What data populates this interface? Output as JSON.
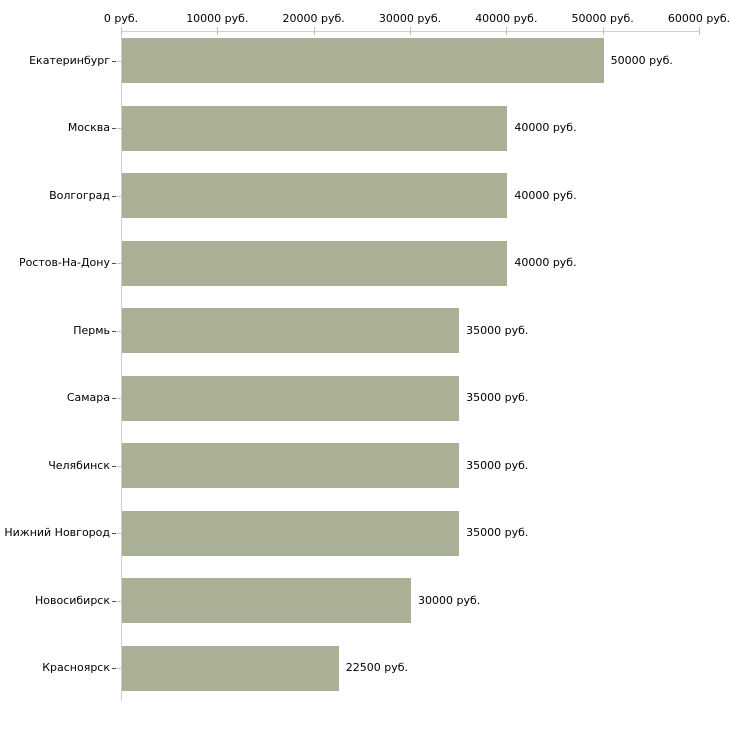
{
  "chart_data": {
    "type": "bar",
    "orientation": "horizontal",
    "title": "",
    "xlabel": "",
    "ylabel": "",
    "unit": "руб.",
    "xlim": [
      0,
      60000
    ],
    "grid": false,
    "legend": false,
    "x_ticks": [
      {
        "value": 0,
        "label": "0 руб."
      },
      {
        "value": 10000,
        "label": "10000 руб."
      },
      {
        "value": 20000,
        "label": "20000 руб."
      },
      {
        "value": 30000,
        "label": "30000 руб."
      },
      {
        "value": 40000,
        "label": "40000 руб."
      },
      {
        "value": 50000,
        "label": "50000 руб."
      },
      {
        "value": 60000,
        "label": "60000 руб."
      }
    ],
    "categories": [
      "Екатеринбург",
      "Москва",
      "Волгоград",
      "Ростов-На-Дону",
      "Пермь",
      "Самара",
      "Челябинск",
      "Нижний Новгород",
      "Новосибирск",
      "Красноярск"
    ],
    "values": [
      50000,
      40000,
      40000,
      40000,
      35000,
      35000,
      35000,
      35000,
      30000,
      22500
    ],
    "value_labels": [
      "50000 руб.",
      "40000 руб.",
      "40000 руб.",
      "40000 руб.",
      "35000 руб.",
      "35000 руб.",
      "35000 руб.",
      "35000 руб.",
      "30000 руб.",
      "22500 руб."
    ],
    "colors": {
      "bar": "#aab096",
      "axis_line": "#d0d0d0",
      "tick": "#c6c69a",
      "tick_dark": "#4a4a4a",
      "text": "#000000"
    }
  }
}
